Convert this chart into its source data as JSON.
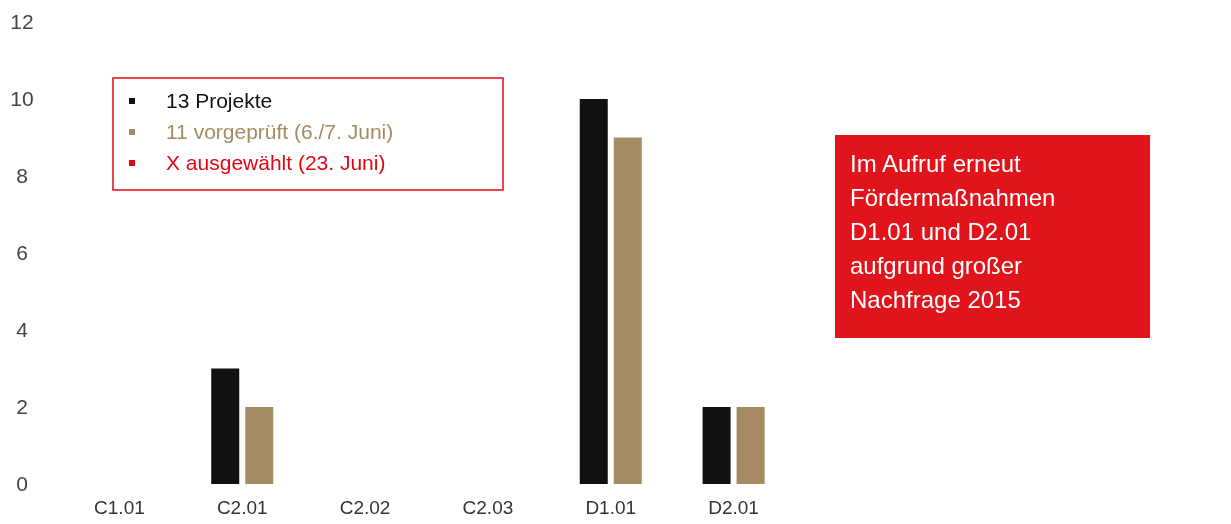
{
  "chart_data": {
    "type": "bar",
    "categories": [
      "C1.01",
      "C2.01",
      "C2.02",
      "C2.03",
      "D1.01",
      "D2.01"
    ],
    "series": [
      {
        "name": "13 Projekte",
        "color": "#111111",
        "values": [
          null,
          3,
          null,
          null,
          10,
          2
        ]
      },
      {
        "name": "11 vorgeprüft (6./7. Juni)",
        "color": "#a48b62",
        "values": [
          null,
          2,
          null,
          null,
          9,
          2
        ]
      },
      {
        "name": "X ausgewählt (23. Juni)",
        "color": "#e30613",
        "values": [
          null,
          null,
          null,
          null,
          null,
          null
        ]
      }
    ],
    "ylim": [
      0,
      12
    ],
    "yticks": [
      0,
      2,
      4,
      6,
      8,
      10,
      12
    ],
    "grid": false,
    "legend": "top left",
    "annotations": [
      "Im Aufruf erneut Fördermaßnahmen D1.01 und D2.01 aufgrund großer Nachfrage 2015"
    ]
  }
}
